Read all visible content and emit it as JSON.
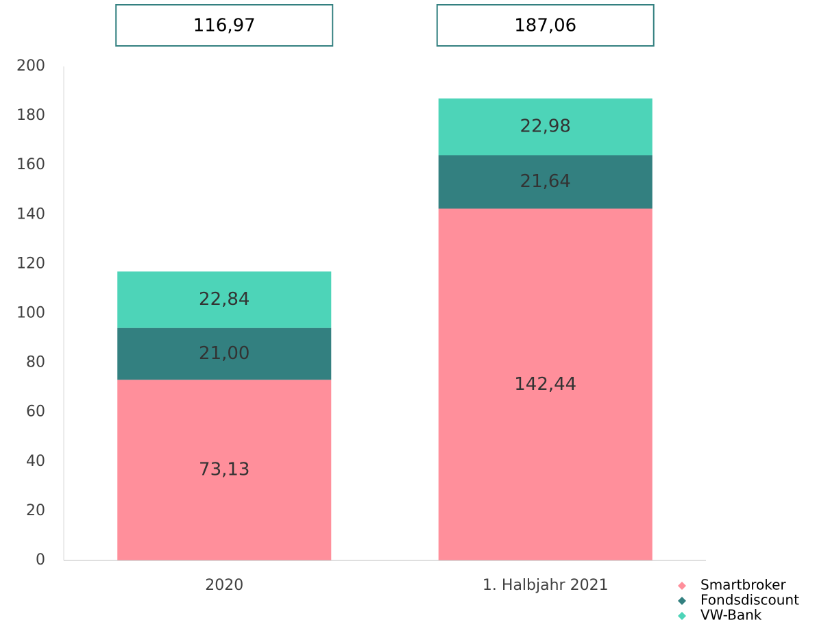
{
  "chart_data": {
    "type": "stacked_bar",
    "categories": [
      "2020",
      "1. Halbjahr 2021"
    ],
    "series": [
      {
        "name": "Smartbroker",
        "color": "#ff8f9b",
        "values": [
          73.13,
          142.44
        ],
        "value_labels": [
          "73,13",
          "142,44"
        ]
      },
      {
        "name": "Fondsdiscount",
        "color": "#338080",
        "values": [
          21.0,
          21.64
        ],
        "value_labels": [
          "21,00",
          "21,64"
        ]
      },
      {
        "name": "VW-Bank",
        "color": "#4dd4b8",
        "values": [
          22.84,
          22.98
        ],
        "value_labels": [
          "22,84",
          "22,98"
        ]
      }
    ],
    "totals": [
      116.97,
      187.06
    ],
    "total_labels": [
      "116,97",
      "187,06"
    ],
    "ylim": [
      0,
      200
    ],
    "yticks": [
      0,
      20,
      40,
      60,
      80,
      100,
      120,
      140,
      160,
      180,
      200
    ],
    "grid": false,
    "legend": "bottom-right"
  }
}
